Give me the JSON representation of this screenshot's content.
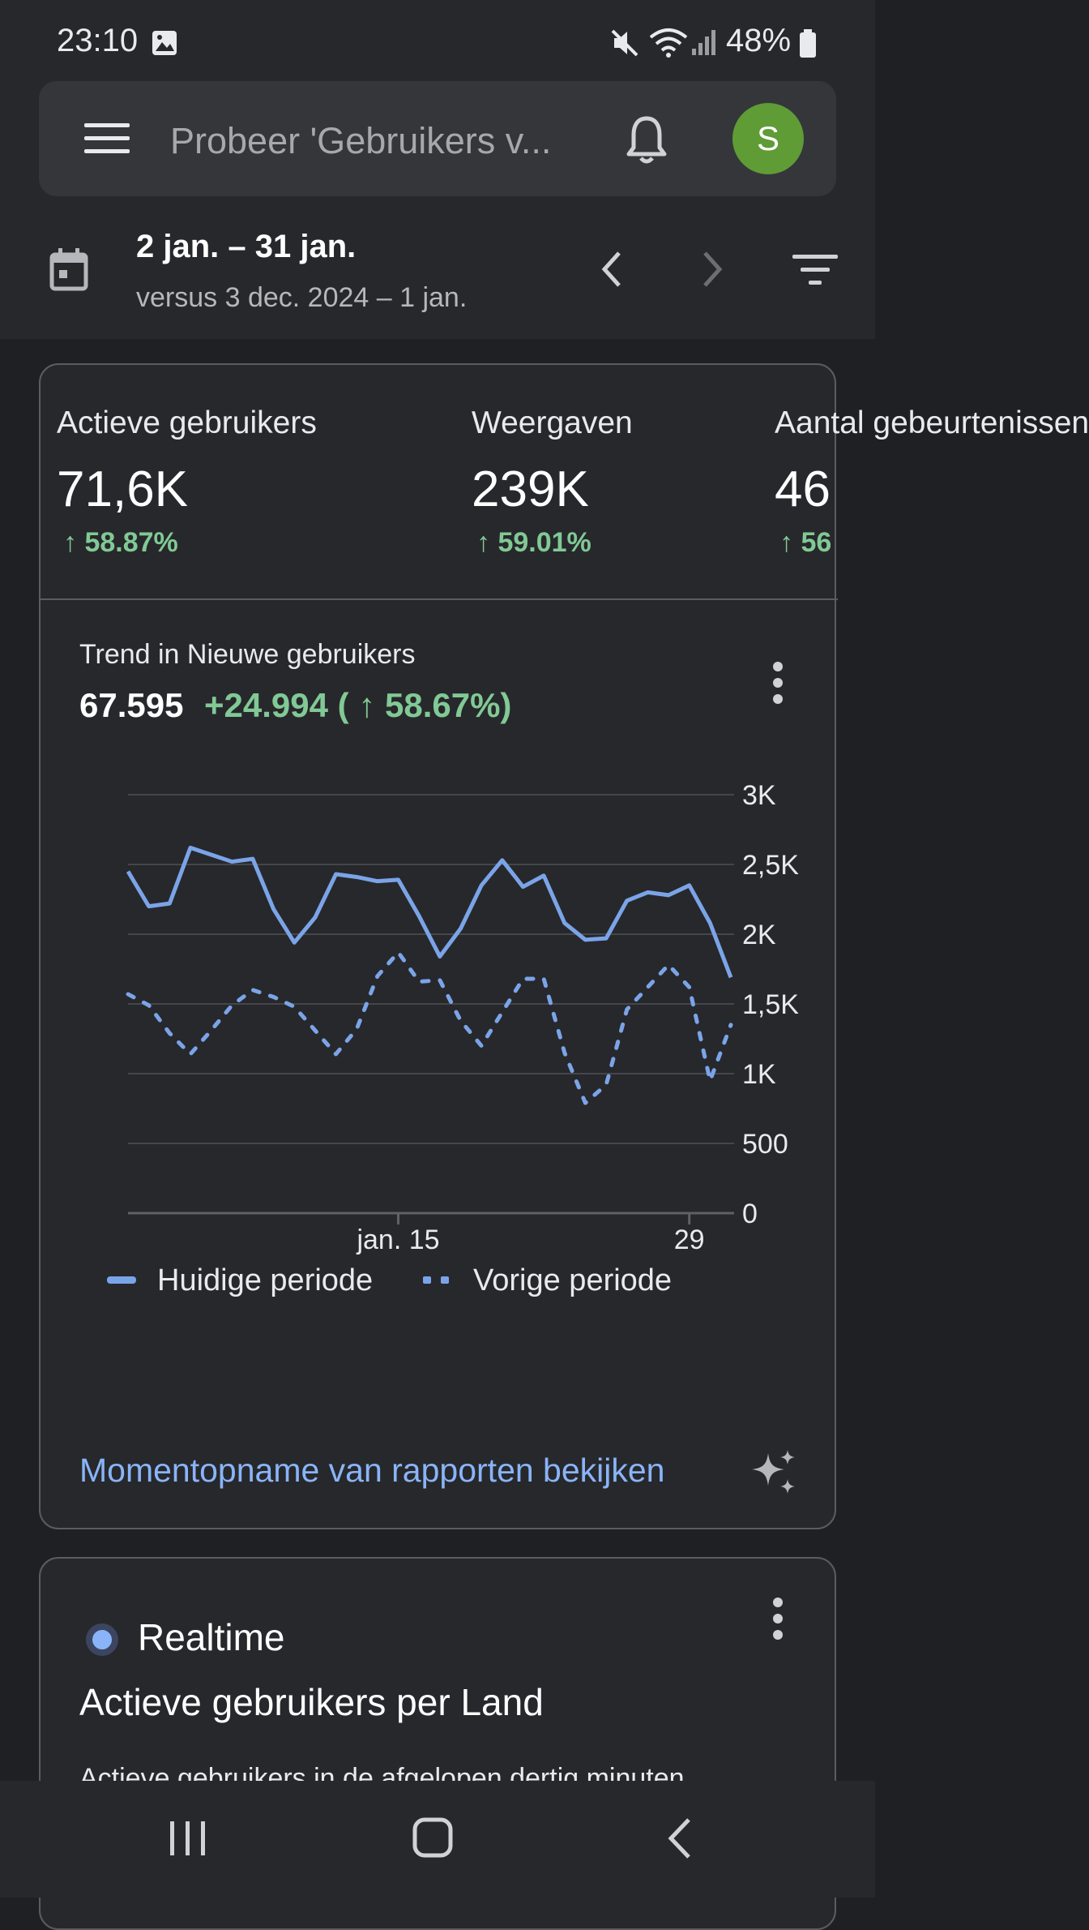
{
  "status_bar": {
    "time": "23:10",
    "battery": "48%",
    "icons": [
      "image-icon",
      "mute-icon",
      "wifi-icon",
      "signal-icon",
      "battery-icon"
    ]
  },
  "search": {
    "placeholder": "Probeer 'Gebruikers v..."
  },
  "header": {
    "avatar_letter": "S",
    "date_range": "2 jan. – 31 jan.",
    "comparison_range": "versus 3 dec. 2024 – 1 jan."
  },
  "metrics": [
    {
      "title": "Actieve gebruikers",
      "value": "71,6K",
      "change": "58.87%"
    },
    {
      "title": "Weergaven",
      "value": "239K",
      "change": "59.01%"
    },
    {
      "title": "Aantal gebeurtenissen",
      "value": "46",
      "change": "56"
    }
  ],
  "trend": {
    "title": "Trend in Nieuwe gebruikers",
    "total": "67.595",
    "delta": "+24.994 ( ↑ 58.67%)"
  },
  "chart_data": {
    "type": "line",
    "title": "Trend in Nieuwe gebruikers",
    "x": [
      2,
      3,
      4,
      5,
      6,
      7,
      8,
      9,
      10,
      11,
      12,
      13,
      14,
      15,
      16,
      17,
      18,
      19,
      20,
      21,
      22,
      23,
      24,
      25,
      26,
      27,
      28,
      29,
      30,
      31
    ],
    "x_tick_labels": [
      "jan. 15",
      "29"
    ],
    "x_tick_values": [
      15,
      29
    ],
    "y_tick_labels": [
      "0",
      "500",
      "1K",
      "1,5K",
      "2K",
      "2,5K",
      "3K"
    ],
    "ylim": [
      0,
      3000
    ],
    "grid": true,
    "legend_position": "bottom",
    "series": [
      {
        "name": "Huidige periode",
        "style": "solid",
        "color": "#7ba4e8",
        "values": [
          2450,
          2200,
          2220,
          2620,
          2570,
          2520,
          2540,
          2180,
          1940,
          2120,
          2430,
          2410,
          2380,
          2390,
          2130,
          1840,
          2040,
          2350,
          2530,
          2340,
          2420,
          2080,
          1960,
          1970,
          2240,
          2300,
          2280,
          2350,
          2080,
          1690
        ]
      },
      {
        "name": "Vorige periode",
        "style": "dotted",
        "color": "#7ba4e8",
        "values": [
          1570,
          1490,
          1290,
          1140,
          1310,
          1490,
          1600,
          1550,
          1480,
          1310,
          1140,
          1320,
          1700,
          1870,
          1660,
          1670,
          1380,
          1200,
          1440,
          1680,
          1680,
          1150,
          790,
          920,
          1460,
          1620,
          1780,
          1620,
          950,
          1350
        ]
      }
    ]
  },
  "snapshot_link": "Momentopname van rapporten bekijken",
  "realtime": {
    "label": "Realtime",
    "title": "Actieve gebruikers per Land",
    "description": "Actieve gebruikers in de afgelopen dertig minuten"
  }
}
